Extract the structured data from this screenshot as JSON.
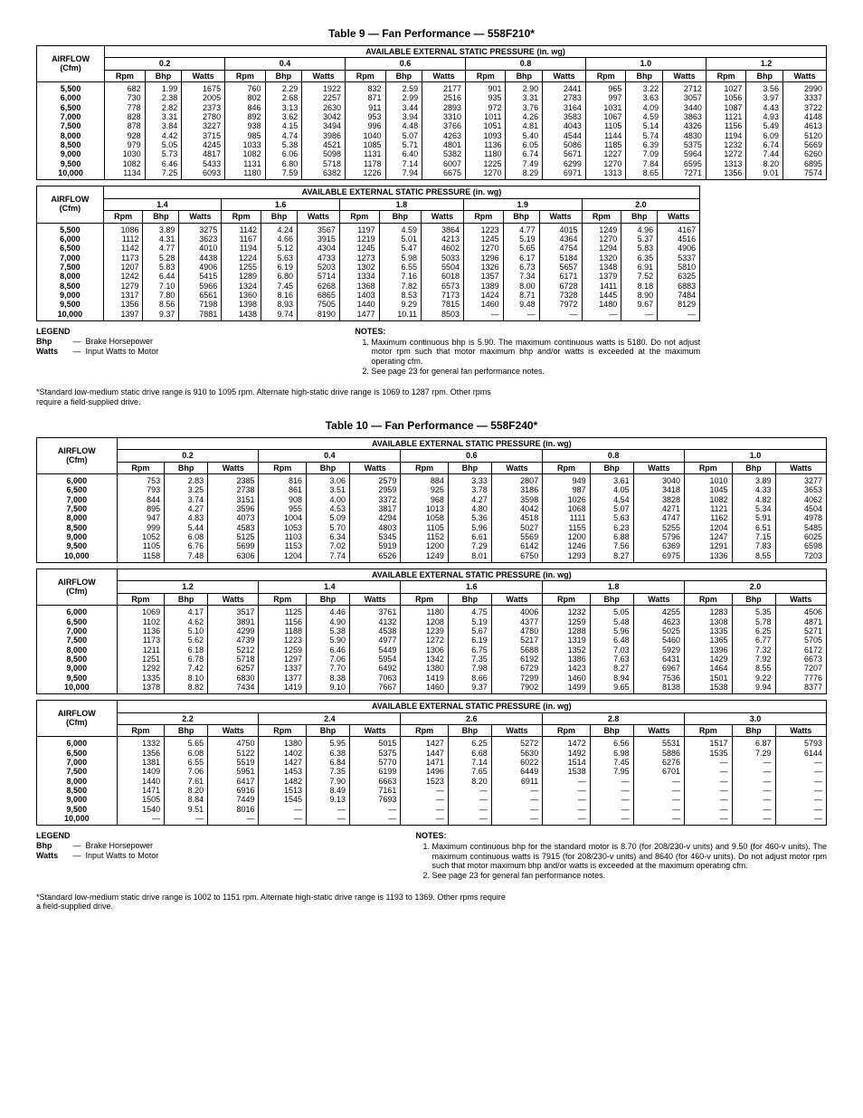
{
  "table9": {
    "title": "Table 9 — Fan Performance — 558F210*",
    "airflow_label": "AIRFLOW\n(Cfm)",
    "aesp_label": "AVAILABLE EXTERNAL STATIC PRESSURE (in. wg)",
    "sub_headers": [
      "Rpm",
      "Bhp",
      "Watts"
    ],
    "part_a": {
      "pressures": [
        "0.2",
        "0.4",
        "0.6",
        "0.8",
        "1.0",
        "1.2"
      ],
      "airflows": [
        "5,500",
        "6,000",
        "6,500",
        "7,000",
        "7,500",
        "8,000",
        "8,500",
        "9,000",
        "9,500",
        "10,000"
      ],
      "rows": [
        [
          "682",
          "1.99",
          "1675",
          "760",
          "2.29",
          "1922",
          "832",
          "2.59",
          "2177",
          "901",
          "2.90",
          "2441",
          "965",
          "3.22",
          "2712",
          "1027",
          "3.56",
          "2990"
        ],
        [
          "730",
          "2.38",
          "2005",
          "802",
          "2.68",
          "2257",
          "871",
          "2.99",
          "2516",
          "935",
          "3.31",
          "2783",
          "997",
          "3.63",
          "3057",
          "1056",
          "3.97",
          "3337"
        ],
        [
          "778",
          "2.82",
          "2373",
          "846",
          "3.13",
          "2630",
          "911",
          "3.44",
          "2893",
          "972",
          "3.76",
          "3164",
          "1031",
          "4.09",
          "3440",
          "1087",
          "4.43",
          "3722"
        ],
        [
          "828",
          "3.31",
          "2780",
          "892",
          "3.62",
          "3042",
          "953",
          "3.94",
          "3310",
          "1011",
          "4.26",
          "3583",
          "1067",
          "4.59",
          "3863",
          "1121",
          "4.93",
          "4148"
        ],
        [
          "878",
          "3.84",
          "3227",
          "938",
          "4.15",
          "3494",
          "996",
          "4.48",
          "3766",
          "1051",
          "4.81",
          "4043",
          "1105",
          "5.14",
          "4326",
          "1156",
          "5.49",
          "4613"
        ],
        [
          "928",
          "4.42",
          "3715",
          "985",
          "4.74",
          "3986",
          "1040",
          "5.07",
          "4263",
          "1093",
          "5.40",
          "4544",
          "1144",
          "5.74",
          "4830",
          "1194",
          "6.09",
          "5120"
        ],
        [
          "979",
          "5.05",
          "4245",
          "1033",
          "5.38",
          "4521",
          "1085",
          "5.71",
          "4801",
          "1136",
          "6.05",
          "5086",
          "1185",
          "6.39",
          "5375",
          "1232",
          "6.74",
          "5669"
        ],
        [
          "1030",
          "5.73",
          "4817",
          "1082",
          "6.06",
          "5098",
          "1131",
          "6.40",
          "5382",
          "1180",
          "6.74",
          "5671",
          "1227",
          "7.09",
          "5964",
          "1272",
          "7.44",
          "6260"
        ],
        [
          "1082",
          "6.46",
          "5433",
          "1131",
          "6.80",
          "5718",
          "1178",
          "7.14",
          "6007",
          "1225",
          "7.49",
          "6299",
          "1270",
          "7.84",
          "6595",
          "1313",
          "8.20",
          "6895"
        ],
        [
          "1134",
          "7.25",
          "6093",
          "1180",
          "7.59",
          "6382",
          "1226",
          "7.94",
          "6675",
          "1270",
          "8.29",
          "6971",
          "1313",
          "8.65",
          "7271",
          "1356",
          "9.01",
          "7574"
        ]
      ]
    },
    "part_b": {
      "pressures": [
        "1.4",
        "1.6",
        "1.8",
        "1.9",
        "2.0"
      ],
      "airflows": [
        "5,500",
        "6,000",
        "6,500",
        "7,000",
        "7,500",
        "8,000",
        "8,500",
        "9,000",
        "9,500",
        "10,000"
      ],
      "rows": [
        [
          "1086",
          "3.89",
          "3275",
          "1142",
          "4.24",
          "3567",
          "1197",
          "4.59",
          "3864",
          "1223",
          "4.77",
          "4015",
          "1249",
          "4.96",
          "4167"
        ],
        [
          "1112",
          "4.31",
          "3623",
          "1167",
          "4.66",
          "3915",
          "1219",
          "5.01",
          "4213",
          "1245",
          "5.19",
          "4364",
          "1270",
          "5.37",
          "4516"
        ],
        [
          "1142",
          "4.77",
          "4010",
          "1194",
          "5.12",
          "4304",
          "1245",
          "5.47",
          "4602",
          "1270",
          "5.65",
          "4754",
          "1294",
          "5.83",
          "4906"
        ],
        [
          "1173",
          "5.28",
          "4438",
          "1224",
          "5.63",
          "4733",
          "1273",
          "5.98",
          "5033",
          "1296",
          "6.17",
          "5184",
          "1320",
          "6.35",
          "5337"
        ],
        [
          "1207",
          "5.83",
          "4906",
          "1255",
          "6.19",
          "5203",
          "1302",
          "6.55",
          "5504",
          "1326",
          "6.73",
          "5657",
          "1348",
          "6.91",
          "5810"
        ],
        [
          "1242",
          "6.44",
          "5415",
          "1289",
          "6.80",
          "5714",
          "1334",
          "7.16",
          "6018",
          "1357",
          "7.34",
          "6171",
          "1379",
          "7.52",
          "6325"
        ],
        [
          "1279",
          "7.10",
          "5966",
          "1324",
          "7.45",
          "6268",
          "1368",
          "7.82",
          "6573",
          "1389",
          "8.00",
          "6728",
          "1411",
          "8.18",
          "6883"
        ],
        [
          "1317",
          "7.80",
          "6561",
          "1360",
          "8.16",
          "6865",
          "1403",
          "8.53",
          "7173",
          "1424",
          "8.71",
          "7328",
          "1445",
          "8.90",
          "7484"
        ],
        [
          "1356",
          "8.56",
          "7198",
          "1398",
          "8.93",
          "7505",
          "1440",
          "9.29",
          "7815",
          "1460",
          "9.48",
          "7972",
          "1480",
          "9.67",
          "8129"
        ],
        [
          "1397",
          "9.37",
          "7881",
          "1438",
          "9.74",
          "8190",
          "1477",
          "10.11",
          "8503",
          "—",
          "—",
          "—",
          "—",
          "—",
          "—"
        ]
      ]
    },
    "legend_title": "LEGEND",
    "legend": [
      {
        "abbr": "Bhp",
        "dash": "—",
        "def": "Brake Horsepower"
      },
      {
        "abbr": "Watts",
        "dash": "—",
        "def": "Input Watts to Motor"
      }
    ],
    "notes_title": "NOTES:",
    "notes": [
      "Maximum continuous bhp is 5.90. The maximum continuous watts is 5180. Do not adjust motor rpm such that motor maximum bhp and/or watts is exceeded at the maximum operating cfm.",
      "See page 23 for general fan performance notes."
    ],
    "footnote": "*Standard low-medium static drive range is 910 to 1095 rpm. Alternate high-static drive range is 1069 to 1287 rpm. Other rpms require a field-supplied drive."
  },
  "table10": {
    "title": "Table 10 — Fan Performance — 558F240*",
    "airflow_label": "AIRFLOW\n(Cfm)",
    "aesp_label": "AVAILABLE EXTERNAL STATIC PRESSURE (in. wg)",
    "sub_headers": [
      "Rpm",
      "Bhp",
      "Watts"
    ],
    "part_a": {
      "pressures": [
        "0.2",
        "0.4",
        "0.6",
        "0.8",
        "1.0"
      ],
      "airflows": [
        "6,000",
        "6,500",
        "7,000",
        "7,500",
        "8,000",
        "8,500",
        "9,000",
        "9,500",
        "10,000"
      ],
      "rows": [
        [
          "753",
          "2.83",
          "2385",
          "816",
          "3.06",
          "2579",
          "884",
          "3.33",
          "2807",
          "949",
          "3.61",
          "3040",
          "1010",
          "3.89",
          "3277"
        ],
        [
          "793",
          "3.25",
          "2738",
          "861",
          "3.51",
          "2959",
          "925",
          "3.78",
          "3186",
          "987",
          "4.05",
          "3418",
          "1045",
          "4.33",
          "3653"
        ],
        [
          "844",
          "3.74",
          "3151",
          "908",
          "4.00",
          "3372",
          "968",
          "4.27",
          "3598",
          "1026",
          "4.54",
          "3828",
          "1082",
          "4.82",
          "4062"
        ],
        [
          "895",
          "4.27",
          "3596",
          "955",
          "4.53",
          "3817",
          "1013",
          "4.80",
          "4042",
          "1068",
          "5.07",
          "4271",
          "1121",
          "5.34",
          "4504"
        ],
        [
          "947",
          "4.83",
          "4073",
          "1004",
          "5.09",
          "4294",
          "1058",
          "5.36",
          "4518",
          "1111",
          "5.63",
          "4747",
          "1162",
          "5.91",
          "4978"
        ],
        [
          "999",
          "5.44",
          "4583",
          "1053",
          "5.70",
          "4803",
          "1105",
          "5.96",
          "5027",
          "1155",
          "6.23",
          "5255",
          "1204",
          "6.51",
          "5485"
        ],
        [
          "1052",
          "6.08",
          "5125",
          "1103",
          "6.34",
          "5345",
          "1152",
          "6.61",
          "5569",
          "1200",
          "6.88",
          "5796",
          "1247",
          "7.15",
          "6025"
        ],
        [
          "1105",
          "6.76",
          "5699",
          "1153",
          "7.02",
          "5919",
          "1200",
          "7.29",
          "6142",
          "1246",
          "7.56",
          "6369",
          "1291",
          "7.83",
          "6598"
        ],
        [
          "1158",
          "7.48",
          "6306",
          "1204",
          "7.74",
          "6526",
          "1249",
          "8.01",
          "6750",
          "1293",
          "8.27",
          "6975",
          "1336",
          "8.55",
          "7203"
        ]
      ]
    },
    "part_b": {
      "pressures": [
        "1.2",
        "1.4",
        "1.6",
        "1.8",
        "2.0"
      ],
      "airflows": [
        "6,000",
        "6,500",
        "7,000",
        "7,500",
        "8,000",
        "8,500",
        "9,000",
        "9,500",
        "10,000"
      ],
      "rows": [
        [
          "1069",
          "4.17",
          "3517",
          "1125",
          "4.46",
          "3761",
          "1180",
          "4.75",
          "4006",
          "1232",
          "5.05",
          "4255",
          "1283",
          "5.35",
          "4506"
        ],
        [
          "1102",
          "4.62",
          "3891",
          "1156",
          "4.90",
          "4132",
          "1208",
          "5.19",
          "4377",
          "1259",
          "5.48",
          "4623",
          "1308",
          "5.78",
          "4871"
        ],
        [
          "1136",
          "5.10",
          "4299",
          "1188",
          "5.38",
          "4538",
          "1239",
          "5.67",
          "4780",
          "1288",
          "5.96",
          "5025",
          "1335",
          "6.25",
          "5271"
        ],
        [
          "1173",
          "5.62",
          "4739",
          "1223",
          "5.90",
          "4977",
          "1272",
          "6.19",
          "5217",
          "1319",
          "6.48",
          "5460",
          "1365",
          "6.77",
          "5705"
        ],
        [
          "1211",
          "6.18",
          "5212",
          "1259",
          "6.46",
          "5449",
          "1306",
          "6.75",
          "5688",
          "1352",
          "7.03",
          "5929",
          "1396",
          "7.32",
          "6172"
        ],
        [
          "1251",
          "6.78",
          "5718",
          "1297",
          "7.06",
          "5954",
          "1342",
          "7.35",
          "6192",
          "1386",
          "7.63",
          "6431",
          "1429",
          "7.92",
          "6673"
        ],
        [
          "1292",
          "7.42",
          "6257",
          "1337",
          "7.70",
          "6492",
          "1380",
          "7.98",
          "6729",
          "1423",
          "8.27",
          "6967",
          "1464",
          "8.55",
          "7207"
        ],
        [
          "1335",
          "8.10",
          "6830",
          "1377",
          "8.38",
          "7063",
          "1419",
          "8.66",
          "7299",
          "1460",
          "8.94",
          "7536",
          "1501",
          "9.22",
          "7776"
        ],
        [
          "1378",
          "8.82",
          "7434",
          "1419",
          "9.10",
          "7667",
          "1460",
          "9.37",
          "7902",
          "1499",
          "9.65",
          "8138",
          "1538",
          "9.94",
          "8377"
        ]
      ]
    },
    "part_c": {
      "pressures": [
        "2.2",
        "2.4",
        "2.6",
        "2.8",
        "3.0"
      ],
      "airflows": [
        "6,000",
        "6,500",
        "7,000",
        "7,500",
        "8,000",
        "8,500",
        "9,000",
        "9,500",
        "10,000"
      ],
      "rows": [
        [
          "1332",
          "5.65",
          "4750",
          "1380",
          "5.95",
          "5015",
          "1427",
          "6.25",
          "5272",
          "1472",
          "6.56",
          "5531",
          "1517",
          "6.87",
          "5793"
        ],
        [
          "1356",
          "6.08",
          "5122",
          "1402",
          "6.38",
          "5375",
          "1447",
          "6.68",
          "5630",
          "1492",
          "6.98",
          "5886",
          "1535",
          "7.29",
          "6144"
        ],
        [
          "1381",
          "6.55",
          "5519",
          "1427",
          "6.84",
          "5770",
          "1471",
          "7.14",
          "6022",
          "1514",
          "7.45",
          "6276",
          "—",
          "—",
          "—"
        ],
        [
          "1409",
          "7.06",
          "5951",
          "1453",
          "7.35",
          "6199",
          "1496",
          "7.65",
          "6449",
          "1538",
          "7.95",
          "6701",
          "—",
          "—",
          "—"
        ],
        [
          "1440",
          "7.61",
          "6417",
          "1482",
          "7.90",
          "6663",
          "1523",
          "8.20",
          "6911",
          "—",
          "—",
          "—",
          "—",
          "—",
          "—"
        ],
        [
          "1471",
          "8.20",
          "6916",
          "1513",
          "8.49",
          "7161",
          "—",
          "—",
          "—",
          "—",
          "—",
          "—",
          "—",
          "—",
          "—"
        ],
        [
          "1505",
          "8.84",
          "7449",
          "1545",
          "9.13",
          "7693",
          "—",
          "—",
          "—",
          "—",
          "—",
          "—",
          "—",
          "—",
          "—"
        ],
        [
          "1540",
          "9.51",
          "8016",
          "—",
          "—",
          "—",
          "—",
          "—",
          "—",
          "—",
          "—",
          "—",
          "—",
          "—",
          "—"
        ],
        [
          "—",
          "—",
          "—",
          "—",
          "—",
          "—",
          "—",
          "—",
          "—",
          "—",
          "—",
          "—",
          "—",
          "—",
          "—"
        ]
      ]
    },
    "legend_title": "LEGEND",
    "legend": [
      {
        "abbr": "Bhp",
        "dash": "—",
        "def": "Brake Horsepower"
      },
      {
        "abbr": "Watts",
        "dash": "—",
        "def": "Input Watts to Motor"
      }
    ],
    "notes_title": "NOTES:",
    "notes": [
      "Maximum continuous bhp for the standard motor is 8.70 (for 208/230-v units) and 9.50 (for 460-v units). The maximum continuous watts is 7915 (for 208/230-v units) and 8640 (for 460-v units). Do not adjust motor rpm such that motor maximum bhp and/or watts is exceeded at the maximum operating cfm.",
      "See page 23 for general fan performance notes."
    ],
    "footnote": "*Standard low-medium static drive range is 1002 to 1151 rpm. Alternate high-static drive range is 1193 to 1369. Other rpms require a field-supplied drive."
  }
}
